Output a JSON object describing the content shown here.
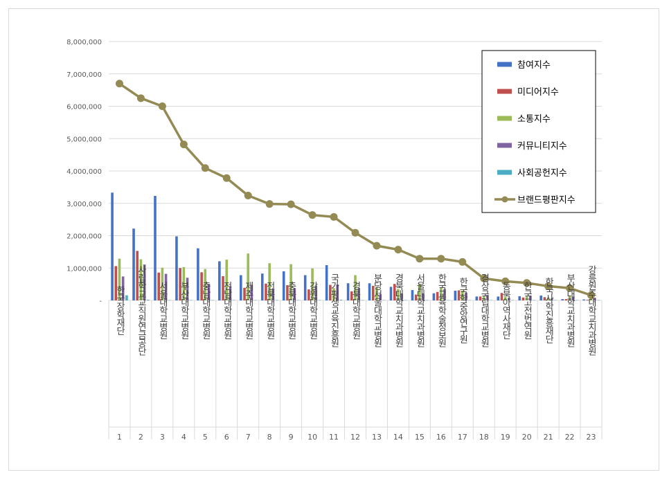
{
  "chart_data": {
    "type": "bar",
    "title": "",
    "xlabel": "",
    "ylabel": "",
    "ylim": [
      0,
      8000000
    ],
    "yticks": [
      "-",
      "1,000,000",
      "2,000,000",
      "3,000,000",
      "4,000,000",
      "5,000,000",
      "6,000,000",
      "7,000,000",
      "8,000,000"
    ],
    "grid": true,
    "legend_position": "top-right",
    "categories": [
      "한국장학재단",
      "사립학교교직원연금공단",
      "서울대학교병원",
      "부산대학교병원",
      "충남대학교병원",
      "전남대학교병원",
      "제주대학교병원",
      "전북대학교병원",
      "충북대학교병원",
      "강원대학교병원",
      "국가평생교육진흥원",
      "경북대학교병원",
      "분당서울대학교병원",
      "경북대학교치과병원",
      "서울대학교치과병원",
      "한국교육학술정보원",
      "한국학중앙연구원",
      "경상국립대학교병원",
      "동북아역사재단",
      "한국고전번역원",
      "한국사학진흥재단",
      "부산대학교치과병원",
      "강릉원주대학교치과병원"
    ],
    "ranks": [
      "1",
      "2",
      "3",
      "4",
      "5",
      "6",
      "7",
      "8",
      "9",
      "10",
      "11",
      "12",
      "13",
      "14",
      "15",
      "16",
      "17",
      "18",
      "19",
      "20",
      "21",
      "22",
      "23"
    ],
    "series": [
      {
        "name": "참여지수",
        "kind": "bar",
        "color": "#4472c4",
        "values": [
          3330000,
          2220000,
          3230000,
          1980000,
          1610000,
          1210000,
          780000,
          830000,
          900000,
          780000,
          1090000,
          530000,
          530000,
          420000,
          320000,
          220000,
          300000,
          120000,
          120000,
          130000,
          150000,
          40000,
          30000
        ]
      },
      {
        "name": "미디어지수",
        "kind": "bar",
        "color": "#c0504d",
        "values": [
          1060000,
          1530000,
          860000,
          1000000,
          870000,
          750000,
          390000,
          520000,
          470000,
          340000,
          480000,
          280000,
          450000,
          510000,
          180000,
          260000,
          310000,
          120000,
          230000,
          90000,
          100000,
          40000,
          20000
        ]
      },
      {
        "name": "소통지수",
        "kind": "bar",
        "color": "#9bbb59",
        "values": [
          1290000,
          1270000,
          1010000,
          1030000,
          970000,
          1260000,
          1450000,
          1150000,
          1120000,
          990000,
          380000,
          780000,
          410000,
          350000,
          510000,
          390000,
          300000,
          140000,
          110000,
          140000,
          80000,
          150000,
          30000
        ]
      },
      {
        "name": "커뮤니티지수",
        "kind": "bar",
        "color": "#8064a2",
        "values": [
          740000,
          1110000,
          820000,
          700000,
          510000,
          440000,
          480000,
          380000,
          380000,
          460000,
          490000,
          380000,
          190000,
          210000,
          200000,
          350000,
          240000,
          170000,
          80000,
          150000,
          60000,
          120000,
          80000
        ]
      },
      {
        "name": "사회공헌지수",
        "kind": "bar",
        "color": "#4bacc6",
        "values": [
          160000,
          20000,
          10000,
          10000,
          10000,
          10000,
          10000,
          10000,
          10000,
          10000,
          20000,
          10000,
          10000,
          10000,
          10000,
          10000,
          10000,
          10000,
          10000,
          10000,
          10000,
          10000,
          10000
        ]
      },
      {
        "name": "브랜드평판지수",
        "kind": "line",
        "color": "#948a54",
        "values": [
          6700000,
          6250000,
          6000000,
          4820000,
          4090000,
          3780000,
          3240000,
          2980000,
          2970000,
          2640000,
          2580000,
          2090000,
          1690000,
          1570000,
          1290000,
          1290000,
          1190000,
          680000,
          590000,
          540000,
          440000,
          380000,
          160000
        ]
      }
    ]
  }
}
